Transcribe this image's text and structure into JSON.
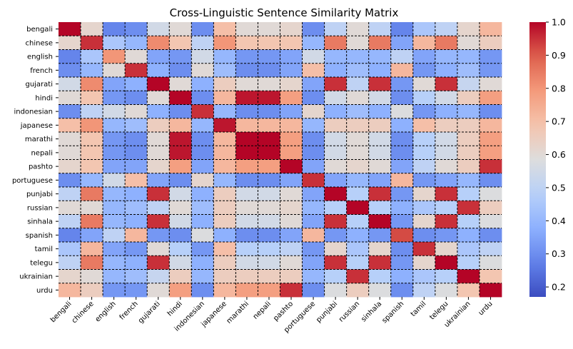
{
  "chart_data": {
    "type": "heatmap",
    "title": "Cross-Linguistic Sentence Similarity Matrix",
    "languages": [
      "bengali",
      "chinese",
      "english",
      "french",
      "gujarati",
      "hindi",
      "indonesian",
      "japanese",
      "marathi",
      "nepali",
      "pashto",
      "portuguese",
      "punjabi",
      "russian",
      "sinhala",
      "spanish",
      "tamil",
      "telegu",
      "ukrainian",
      "urdu"
    ],
    "matrix": [
      [
        1.0,
        0.62,
        0.28,
        0.3,
        0.55,
        0.6,
        0.3,
        0.7,
        0.6,
        0.6,
        0.62,
        0.3,
        0.5,
        0.6,
        0.5,
        0.28,
        0.45,
        0.5,
        0.62,
        0.72
      ],
      [
        0.62,
        0.95,
        0.45,
        0.4,
        0.82,
        0.68,
        0.5,
        0.8,
        0.68,
        0.68,
        0.68,
        0.4,
        0.85,
        0.6,
        0.85,
        0.35,
        0.72,
        0.85,
        0.6,
        0.65
      ],
      [
        0.28,
        0.45,
        0.8,
        0.6,
        0.35,
        0.32,
        0.55,
        0.4,
        0.32,
        0.32,
        0.35,
        0.55,
        0.4,
        0.4,
        0.4,
        0.5,
        0.35,
        0.4,
        0.4,
        0.32
      ],
      [
        0.3,
        0.4,
        0.6,
        0.95,
        0.38,
        0.3,
        0.6,
        0.42,
        0.3,
        0.3,
        0.35,
        0.7,
        0.38,
        0.42,
        0.38,
        0.72,
        0.32,
        0.38,
        0.42,
        0.32
      ],
      [
        0.55,
        0.82,
        0.35,
        0.38,
        1.0,
        0.6,
        0.38,
        0.65,
        0.6,
        0.6,
        0.62,
        0.35,
        0.95,
        0.5,
        0.95,
        0.32,
        0.6,
        0.95,
        0.52,
        0.6
      ],
      [
        0.6,
        0.68,
        0.32,
        0.3,
        0.6,
        1.0,
        0.3,
        0.72,
        0.98,
        0.98,
        0.78,
        0.3,
        0.55,
        0.6,
        0.55,
        0.3,
        0.48,
        0.55,
        0.65,
        0.78
      ],
      [
        0.3,
        0.5,
        0.55,
        0.6,
        0.38,
        0.3,
        0.95,
        0.4,
        0.3,
        0.3,
        0.35,
        0.62,
        0.38,
        0.42,
        0.38,
        0.58,
        0.32,
        0.38,
        0.4,
        0.3
      ],
      [
        0.7,
        0.8,
        0.4,
        0.42,
        0.65,
        0.72,
        0.4,
        0.98,
        0.72,
        0.72,
        0.72,
        0.4,
        0.65,
        0.65,
        0.65,
        0.38,
        0.7,
        0.65,
        0.65,
        0.72
      ],
      [
        0.6,
        0.68,
        0.32,
        0.3,
        0.6,
        0.98,
        0.3,
        0.72,
        1.0,
        1.0,
        0.78,
        0.3,
        0.55,
        0.6,
        0.55,
        0.3,
        0.48,
        0.55,
        0.65,
        0.78
      ],
      [
        0.6,
        0.68,
        0.32,
        0.3,
        0.6,
        0.98,
        0.3,
        0.72,
        1.0,
        1.0,
        0.78,
        0.3,
        0.55,
        0.6,
        0.55,
        0.3,
        0.48,
        0.55,
        0.65,
        0.78
      ],
      [
        0.62,
        0.68,
        0.35,
        0.35,
        0.62,
        0.78,
        0.35,
        0.72,
        0.78,
        0.78,
        1.0,
        0.35,
        0.6,
        0.62,
        0.6,
        0.35,
        0.5,
        0.6,
        0.65,
        0.95
      ],
      [
        0.3,
        0.4,
        0.55,
        0.7,
        0.35,
        0.3,
        0.62,
        0.4,
        0.3,
        0.3,
        0.35,
        0.95,
        0.35,
        0.4,
        0.35,
        0.72,
        0.32,
        0.35,
        0.4,
        0.3
      ],
      [
        0.5,
        0.85,
        0.4,
        0.38,
        0.95,
        0.55,
        0.38,
        0.65,
        0.55,
        0.55,
        0.6,
        0.35,
        1.0,
        0.48,
        0.95,
        0.32,
        0.62,
        0.95,
        0.48,
        0.58
      ],
      [
        0.6,
        0.6,
        0.4,
        0.42,
        0.5,
        0.6,
        0.42,
        0.65,
        0.6,
        0.6,
        0.62,
        0.4,
        0.48,
        1.0,
        0.48,
        0.38,
        0.45,
        0.48,
        0.95,
        0.65
      ],
      [
        0.5,
        0.85,
        0.4,
        0.38,
        0.95,
        0.55,
        0.38,
        0.65,
        0.55,
        0.55,
        0.6,
        0.35,
        0.95,
        0.48,
        1.0,
        0.32,
        0.62,
        0.95,
        0.48,
        0.58
      ],
      [
        0.28,
        0.35,
        0.5,
        0.72,
        0.32,
        0.3,
        0.58,
        0.38,
        0.3,
        0.3,
        0.35,
        0.72,
        0.32,
        0.38,
        0.32,
        0.92,
        0.3,
        0.32,
        0.38,
        0.3
      ],
      [
        0.45,
        0.72,
        0.35,
        0.32,
        0.6,
        0.48,
        0.32,
        0.7,
        0.48,
        0.48,
        0.5,
        0.32,
        0.62,
        0.45,
        0.62,
        0.3,
        0.95,
        0.62,
        0.45,
        0.5
      ],
      [
        0.5,
        0.85,
        0.4,
        0.38,
        0.95,
        0.55,
        0.38,
        0.65,
        0.55,
        0.55,
        0.6,
        0.35,
        0.95,
        0.48,
        0.95,
        0.32,
        0.62,
        1.0,
        0.48,
        0.58
      ],
      [
        0.62,
        0.6,
        0.4,
        0.42,
        0.52,
        0.65,
        0.4,
        0.65,
        0.65,
        0.65,
        0.65,
        0.4,
        0.48,
        0.95,
        0.48,
        0.38,
        0.45,
        0.48,
        1.0,
        0.68
      ],
      [
        0.72,
        0.65,
        0.32,
        0.32,
        0.6,
        0.78,
        0.3,
        0.72,
        0.78,
        0.78,
        0.95,
        0.3,
        0.58,
        0.65,
        0.58,
        0.3,
        0.5,
        0.58,
        0.68,
        1.0
      ]
    ],
    "colorbar": {
      "colormap": "coolwarm",
      "vmin": 0.17,
      "vmax": 1.0,
      "ticks": [
        "0.2",
        "0.3",
        "0.4",
        "0.5",
        "0.6",
        "0.7",
        "0.8",
        "0.9",
        "1.0"
      ],
      "tick_values": [
        0.2,
        0.3,
        0.4,
        0.5,
        0.6,
        0.7,
        0.8,
        0.9,
        1.0
      ]
    },
    "grid": "dashed black lines between language blocks",
    "xlabel": "",
    "ylabel": ""
  }
}
